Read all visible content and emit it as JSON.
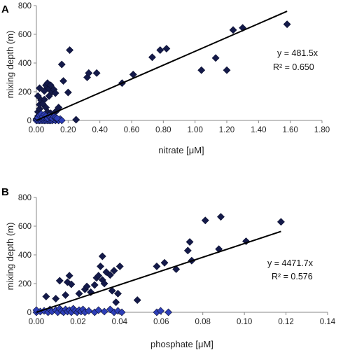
{
  "chart_data": [
    {
      "type": "scatter",
      "panel": "A",
      "xlabel": "nitrate [μM]",
      "ylabel": "mixing depth (m)",
      "xlim": [
        0,
        1.8
      ],
      "ylim": [
        0,
        800
      ],
      "xticks": [
        "0.00",
        "0.20",
        "0.40",
        "0.60",
        "0.80",
        "1.00",
        "1.20",
        "1.40",
        "1.60",
        "1.80"
      ],
      "yticks": [
        "0",
        "200",
        "400",
        "600",
        "800"
      ],
      "grid": false,
      "equation": "y = 481.5x",
      "r2": "R² = 0.650",
      "fit_slope": 481.5,
      "series": [
        {
          "color": "#141a4a",
          "points": [
            [
              0.0,
              0
            ],
            [
              0.0,
              10
            ],
            [
              0.01,
              30
            ],
            [
              0.01,
              60
            ],
            [
              0.02,
              80
            ],
            [
              0.02,
              110
            ],
            [
              0.03,
              140
            ],
            [
              0.01,
              170
            ],
            [
              0.02,
              225
            ],
            [
              0.05,
              205
            ],
            [
              0.06,
              245
            ],
            [
              0.07,
              260
            ],
            [
              0.08,
              220
            ],
            [
              0.09,
              245
            ],
            [
              0.1,
              200
            ],
            [
              0.11,
              215
            ],
            [
              0.12,
              190
            ],
            [
              0.08,
              170
            ],
            [
              0.05,
              145
            ],
            [
              0.04,
              115
            ],
            [
              0.06,
              90
            ],
            [
              0.07,
              60
            ],
            [
              0.09,
              50
            ],
            [
              0.1,
              35
            ],
            [
              0.12,
              60
            ],
            [
              0.13,
              70
            ],
            [
              0.14,
              90
            ],
            [
              0.08,
              20
            ],
            [
              0.03,
              20
            ],
            [
              0.16,
              390
            ],
            [
              0.17,
              275
            ],
            [
              0.2,
              195
            ],
            [
              0.21,
              490
            ],
            [
              0.25,
              5
            ],
            [
              0.32,
              300
            ],
            [
              0.33,
              330
            ],
            [
              0.38,
              330
            ],
            [
              0.54,
              260
            ],
            [
              0.61,
              320
            ],
            [
              0.73,
              440
            ],
            [
              0.78,
              490
            ],
            [
              0.82,
              500
            ],
            [
              1.04,
              350
            ],
            [
              1.13,
              435
            ],
            [
              1.2,
              350
            ],
            [
              1.24,
              630
            ],
            [
              1.3,
              645
            ],
            [
              1.58,
              670
            ]
          ]
        },
        {
          "color": "#2e3fb8",
          "points": [
            [
              0.0,
              0
            ],
            [
              0.005,
              5
            ],
            [
              0.01,
              0
            ],
            [
              0.015,
              10
            ],
            [
              0.02,
              0
            ],
            [
              0.025,
              5
            ],
            [
              0.03,
              0
            ],
            [
              0.035,
              15
            ],
            [
              0.04,
              0
            ],
            [
              0.045,
              5
            ],
            [
              0.05,
              0
            ],
            [
              0.055,
              10
            ],
            [
              0.06,
              0
            ],
            [
              0.065,
              5
            ],
            [
              0.07,
              0
            ],
            [
              0.075,
              15
            ],
            [
              0.08,
              0
            ],
            [
              0.085,
              5
            ],
            [
              0.09,
              0
            ],
            [
              0.095,
              10
            ],
            [
              0.1,
              0
            ],
            [
              0.11,
              5
            ],
            [
              0.12,
              0
            ],
            [
              0.13,
              5
            ],
            [
              0.14,
              0
            ],
            [
              0.15,
              10
            ],
            [
              0.16,
              0
            ],
            [
              0.01,
              20
            ],
            [
              0.02,
              35
            ],
            [
              0.03,
              45
            ],
            [
              0.04,
              25
            ],
            [
              0.05,
              40
            ],
            [
              0.06,
              30
            ],
            [
              0.07,
              15
            ],
            [
              0.08,
              30
            ],
            [
              0.09,
              20
            ],
            [
              0.1,
              15
            ],
            [
              0.11,
              25
            ],
            [
              0.12,
              20
            ],
            [
              0.13,
              15
            ]
          ]
        }
      ]
    },
    {
      "type": "scatter",
      "panel": "B",
      "xlabel": "phosphate [μM]",
      "ylabel": "mixing depth (m)",
      "xlim": [
        0,
        0.15
      ],
      "ylim": [
        0,
        800
      ],
      "xticks": [
        "0.00",
        "0.02",
        "0.04",
        "0.06",
        "0.08",
        "0.10",
        "0.12",
        "0.14"
      ],
      "yticks": [
        "0",
        "200",
        "400",
        "600",
        "800"
      ],
      "grid": false,
      "equation": "y = 4471.7x",
      "r2": "R² = 0.576",
      "fit_slope": 4471.7,
      "series": [
        {
          "color": "#141a4a",
          "points": [
            [
              0.005,
              110
            ],
            [
              0.01,
              95
            ],
            [
              0.012,
              220
            ],
            [
              0.015,
              120
            ],
            [
              0.016,
              210
            ],
            [
              0.017,
              255
            ],
            [
              0.018,
              195
            ],
            [
              0.022,
              130
            ],
            [
              0.025,
              160
            ],
            [
              0.026,
              180
            ],
            [
              0.028,
              140
            ],
            [
              0.03,
              190
            ],
            [
              0.031,
              240
            ],
            [
              0.032,
              255
            ],
            [
              0.033,
              320
            ],
            [
              0.034,
              390
            ],
            [
              0.034,
              225
            ],
            [
              0.035,
              200
            ],
            [
              0.036,
              280
            ],
            [
              0.038,
              260
            ],
            [
              0.039,
              150
            ],
            [
              0.04,
              290
            ],
            [
              0.041,
              70
            ],
            [
              0.042,
              130
            ],
            [
              0.043,
              320
            ],
            [
              0.052,
              85
            ],
            [
              0.062,
              320
            ],
            [
              0.066,
              345
            ],
            [
              0.072,
              300
            ],
            [
              0.078,
              430
            ],
            [
              0.079,
              490
            ],
            [
              0.08,
              360
            ],
            [
              0.087,
              640
            ],
            [
              0.094,
              440
            ],
            [
              0.095,
              665
            ],
            [
              0.108,
              495
            ],
            [
              0.126,
              630
            ]
          ]
        },
        {
          "color": "#2e3fb8",
          "points": [
            [
              0.0,
              0
            ],
            [
              0.0,
              15
            ],
            [
              0.002,
              5
            ],
            [
              0.004,
              10
            ],
            [
              0.006,
              0
            ],
            [
              0.007,
              20
            ],
            [
              0.008,
              5
            ],
            [
              0.01,
              15
            ],
            [
              0.011,
              0
            ],
            [
              0.012,
              25
            ],
            [
              0.013,
              10
            ],
            [
              0.014,
              0
            ],
            [
              0.015,
              20
            ],
            [
              0.016,
              5
            ],
            [
              0.017,
              15
            ],
            [
              0.018,
              0
            ],
            [
              0.019,
              25
            ],
            [
              0.02,
              10
            ],
            [
              0.021,
              0
            ],
            [
              0.022,
              15
            ],
            [
              0.023,
              5
            ],
            [
              0.024,
              20
            ],
            [
              0.025,
              0
            ],
            [
              0.027,
              10
            ],
            [
              0.03,
              0
            ],
            [
              0.032,
              15
            ],
            [
              0.035,
              5
            ],
            [
              0.038,
              20
            ],
            [
              0.04,
              0
            ],
            [
              0.042,
              10
            ],
            [
              0.044,
              0
            ],
            [
              0.062,
              0
            ],
            [
              0.064,
              10
            ],
            [
              0.068,
              0
            ]
          ]
        }
      ]
    }
  ]
}
